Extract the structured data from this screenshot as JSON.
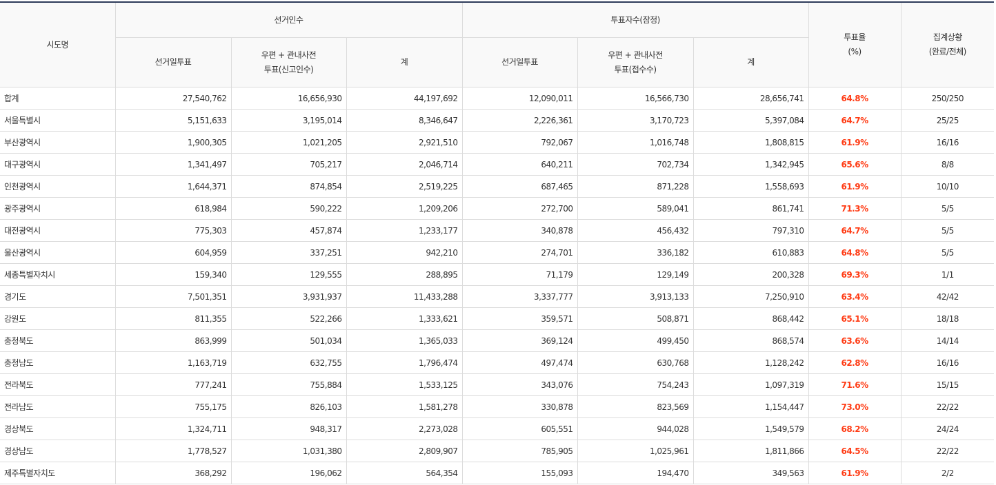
{
  "headers": {
    "region": "시도명",
    "electorate": "선거인수",
    "voters": "투표자수(잠정)",
    "election_day": "선거일투표",
    "early_electorate_1": "우편 + 관내사전",
    "early_electorate_2": "투표(신고인수)",
    "total": "계",
    "election_day_v": "선거일투표",
    "early_voters_1": "우편 + 관내사전",
    "early_voters_2": "투표(접수수)",
    "total_v": "계",
    "rate_1": "투표율",
    "rate_2": "(%)",
    "status_1": "집계상황",
    "status_2": "(완료/전체)"
  },
  "colors": {
    "rate": "#ff3b14",
    "header_border": "#2d3a5a"
  },
  "rows": [
    [
      "합계",
      "27,540,762",
      "16,656,930",
      "44,197,692",
      "12,090,011",
      "16,566,730",
      "28,656,741",
      "64.8%",
      "250/250"
    ],
    [
      "서울특별시",
      "5,151,633",
      "3,195,014",
      "8,346,647",
      "2,226,361",
      "3,170,723",
      "5,397,084",
      "64.7%",
      "25/25"
    ],
    [
      "부산광역시",
      "1,900,305",
      "1,021,205",
      "2,921,510",
      "792,067",
      "1,016,748",
      "1,808,815",
      "61.9%",
      "16/16"
    ],
    [
      "대구광역시",
      "1,341,497",
      "705,217",
      "2,046,714",
      "640,211",
      "702,734",
      "1,342,945",
      "65.6%",
      "8/8"
    ],
    [
      "인천광역시",
      "1,644,371",
      "874,854",
      "2,519,225",
      "687,465",
      "871,228",
      "1,558,693",
      "61.9%",
      "10/10"
    ],
    [
      "광주광역시",
      "618,984",
      "590,222",
      "1,209,206",
      "272,700",
      "589,041",
      "861,741",
      "71.3%",
      "5/5"
    ],
    [
      "대전광역시",
      "775,303",
      "457,874",
      "1,233,177",
      "340,878",
      "456,432",
      "797,310",
      "64.7%",
      "5/5"
    ],
    [
      "울산광역시",
      "604,959",
      "337,251",
      "942,210",
      "274,701",
      "336,182",
      "610,883",
      "64.8%",
      "5/5"
    ],
    [
      "세종특별자치시",
      "159,340",
      "129,555",
      "288,895",
      "71,179",
      "129,149",
      "200,328",
      "69.3%",
      "1/1"
    ],
    [
      "경기도",
      "7,501,351",
      "3,931,937",
      "11,433,288",
      "3,337,777",
      "3,913,133",
      "7,250,910",
      "63.4%",
      "42/42"
    ],
    [
      "강원도",
      "811,355",
      "522,266",
      "1,333,621",
      "359,571",
      "508,871",
      "868,442",
      "65.1%",
      "18/18"
    ],
    [
      "충청북도",
      "863,999",
      "501,034",
      "1,365,033",
      "369,124",
      "499,450",
      "868,574",
      "63.6%",
      "14/14"
    ],
    [
      "충청남도",
      "1,163,719",
      "632,755",
      "1,796,474",
      "497,474",
      "630,768",
      "1,128,242",
      "62.8%",
      "16/16"
    ],
    [
      "전라북도",
      "777,241",
      "755,884",
      "1,533,125",
      "343,076",
      "754,243",
      "1,097,319",
      "71.6%",
      "15/15"
    ],
    [
      "전라남도",
      "755,175",
      "826,103",
      "1,581,278",
      "330,878",
      "823,569",
      "1,154,447",
      "73.0%",
      "22/22"
    ],
    [
      "경상북도",
      "1,324,711",
      "948,317",
      "2,273,028",
      "605,551",
      "944,028",
      "1,549,579",
      "68.2%",
      "24/24"
    ],
    [
      "경상남도",
      "1,778,527",
      "1,031,380",
      "2,809,907",
      "785,905",
      "1,025,961",
      "1,811,866",
      "64.5%",
      "22/22"
    ],
    [
      "제주특별자치도",
      "368,292",
      "196,062",
      "564,354",
      "155,093",
      "194,470",
      "349,563",
      "61.9%",
      "2/2"
    ]
  ]
}
